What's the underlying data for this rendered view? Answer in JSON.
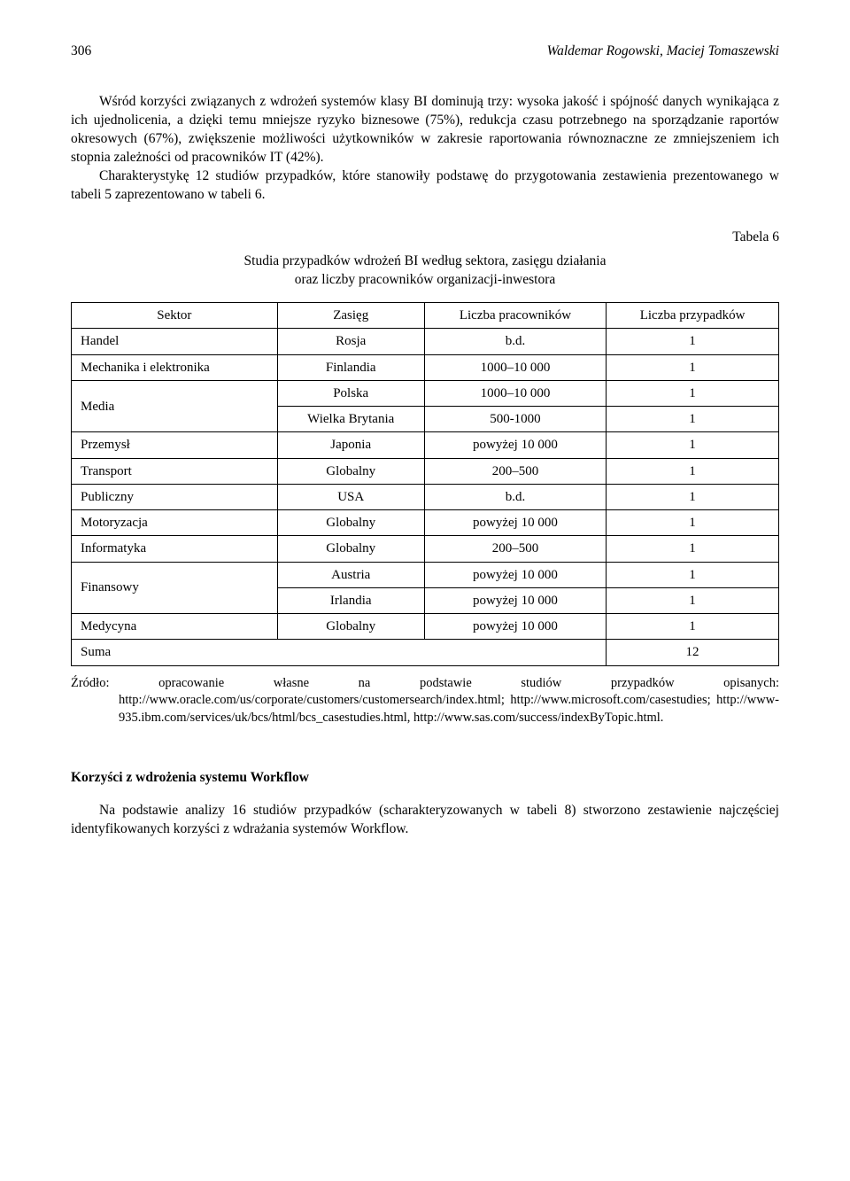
{
  "header": {
    "page_number": "306",
    "authors": "Waldemar Rogowski, Maciej Tomaszewski"
  },
  "paragraphs": {
    "p1": "Wśród korzyści związanych z wdrożeń systemów klasy BI dominują trzy: wysoka jakość i spójność danych wynikająca z ich ujednolicenia, a dzięki temu mniejsze ryzyko biznesowe (75%), redukcja czasu potrzebnego na sporządzanie raportów okresowych (67%), zwiększenie możliwości użytkowników w zakresie raportowania równoznaczne ze zmniejszeniem ich stopnia zależności od pracowników IT (42%).",
    "p2": "Charakterystykę 12 studiów przypadków, które stanowiły podstawę do przygotowania zestawienia prezentowanego w tabeli 5 zaprezentowano w tabeli 6."
  },
  "table": {
    "label": "Tabela 6",
    "caption_line1": "Studia przypadków wdrożeń BI według sektora, zasięgu działania",
    "caption_line2": "oraz liczby pracowników organizacji-inwestora",
    "headers": {
      "col1": "Sektor",
      "col2": "Zasięg",
      "col3": "Liczba pracowników",
      "col4": "Liczba przypadków"
    },
    "rows": [
      {
        "sector": "Handel",
        "reach": "Rosja",
        "employees": "b.d.",
        "cases": "1",
        "rowspan": 1
      },
      {
        "sector": "Mechanika i elektronika",
        "reach": "Finlandia",
        "employees": "1000–10 000",
        "cases": "1",
        "rowspan": 1
      },
      {
        "sector": "Media",
        "reach": "Polska",
        "employees": "1000–10 000",
        "cases": "1",
        "rowspan": 2
      },
      {
        "sector": "",
        "reach": "Wielka Brytania",
        "employees": "500-1000",
        "cases": "1",
        "rowspan": 0
      },
      {
        "sector": "Przemysł",
        "reach": "Japonia",
        "employees": "powyżej 10 000",
        "cases": "1",
        "rowspan": 1
      },
      {
        "sector": "Transport",
        "reach": "Globalny",
        "employees": "200–500",
        "cases": "1",
        "rowspan": 1
      },
      {
        "sector": "Publiczny",
        "reach": "USA",
        "employees": "b.d.",
        "cases": "1",
        "rowspan": 1
      },
      {
        "sector": "Motoryzacja",
        "reach": "Globalny",
        "employees": "powyżej 10 000",
        "cases": "1",
        "rowspan": 1
      },
      {
        "sector": "Informatyka",
        "reach": "Globalny",
        "employees": "200–500",
        "cases": "1",
        "rowspan": 1
      },
      {
        "sector": "Finansowy",
        "reach": "Austria",
        "employees": "powyżej 10 000",
        "cases": "1",
        "rowspan": 2
      },
      {
        "sector": "",
        "reach": "Irlandia",
        "employees": "powyżej 10 000",
        "cases": "1",
        "rowspan": 0
      },
      {
        "sector": "Medycyna",
        "reach": "Globalny",
        "employees": "powyżej 10 000",
        "cases": "1",
        "rowspan": 1
      }
    ],
    "sum_label": "Suma",
    "sum_value": "12"
  },
  "source": {
    "label": "Źródło:",
    "text": "opracowanie własne na podstawie studiów przypadków opisanych: http://www.oracle.com/us/corporate/customers/customersearch/index.html; http://www.microsoft.com/casestudies; http://www-935.ibm.com/services/uk/bcs/html/bcs_casestudies.html, http://www.sas.com/success/indexByTopic.html."
  },
  "section": {
    "heading": "Korzyści z wdrożenia systemu Workflow",
    "body": "Na podstawie analizy 16 studiów przypadków (scharakteryzowanych w tabeli 8) stworzono zestawienie najczęściej identyfikowanych korzyści z wdrażania systemów Workflow."
  }
}
